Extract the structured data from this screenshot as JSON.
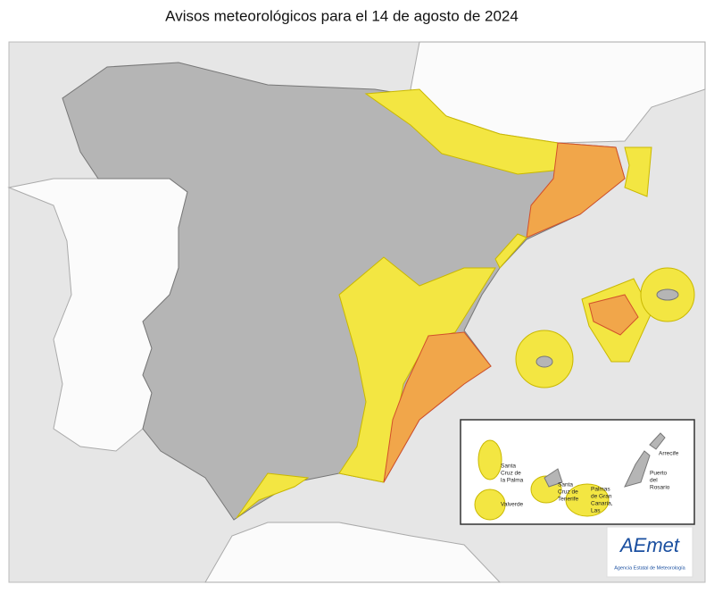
{
  "title": "Avisos meteorológicos para el 14 de agosto de 2024",
  "canarias_labels": [
    {
      "lines": [
        "Santa",
        "Cruz de",
        "la Palma"
      ]
    },
    {
      "lines": [
        "Valverde"
      ]
    },
    {
      "lines": [
        "Santa",
        "Cruz de",
        "Tenerife"
      ]
    },
    {
      "lines": [
        "Palmas",
        "de Gran",
        "Canaria,",
        "Las"
      ]
    },
    {
      "lines": [
        "Arrecife"
      ]
    },
    {
      "lines": [
        "Puerto",
        "del",
        "Rosario"
      ]
    }
  ],
  "logo": {
    "name": "AEmet",
    "subtitle": "Agencia Estatal de Meteorología"
  }
}
